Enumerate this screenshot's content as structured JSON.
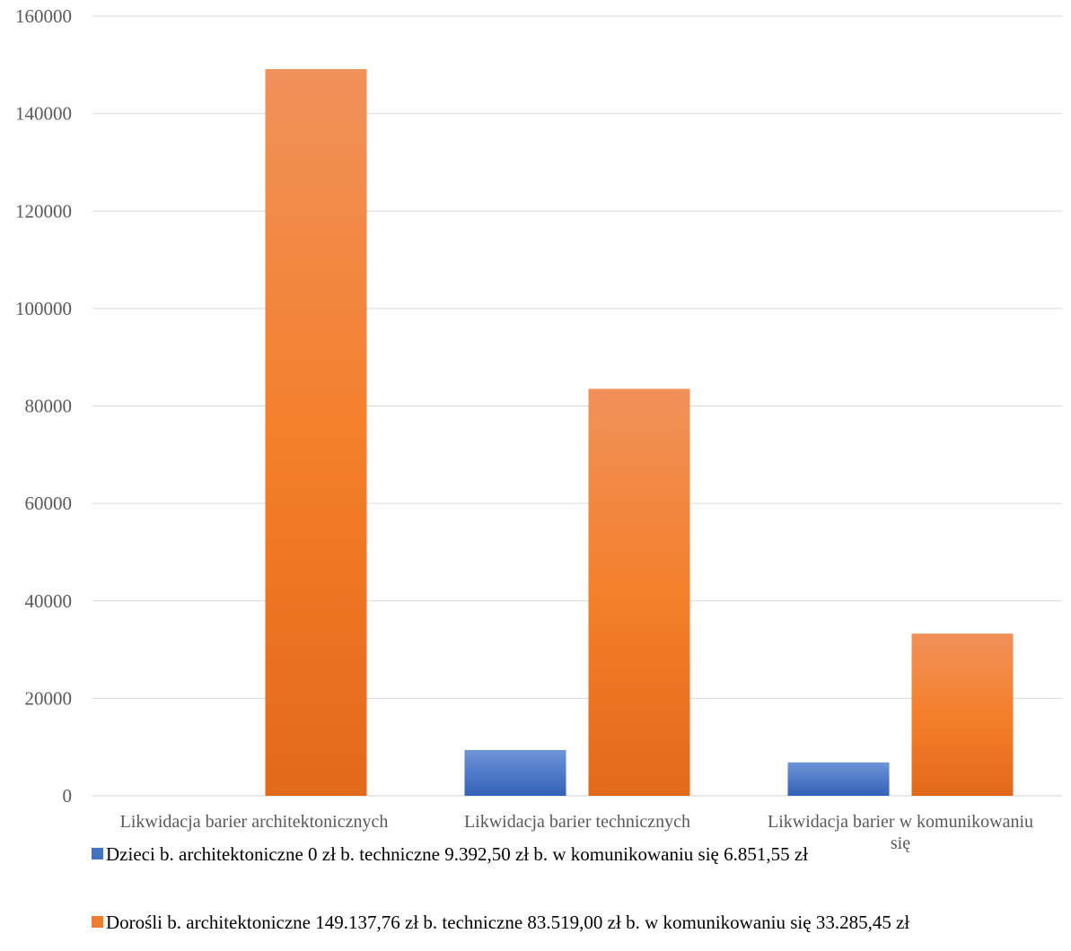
{
  "chart_data": {
    "type": "bar",
    "categories": [
      "Likwidacja barier architektonicznych",
      "Likwidacja barier technicznych",
      "Likwidacja barier w komunikowaniu się"
    ],
    "ylim": [
      0,
      160000
    ],
    "yticks": [
      0,
      20000,
      40000,
      60000,
      80000,
      100000,
      120000,
      140000,
      160000
    ],
    "grid": true,
    "legend_position": "bottom",
    "series": [
      {
        "name": "Dzieci b. architektoniczne 0 zł b. techniczne 9.392,50 zł b. w komunikowaniu się 6.851,55 zł",
        "values": [
          0,
          9392.5,
          6851.55
        ],
        "color": "#4472c4"
      },
      {
        "name": "Dorośli b. architektoniczne 149.137,76 zł b. techniczne 83.519,00 zł b. w komunikowaniu się 33.285,45 zł",
        "values": [
          149137.76,
          83519.0,
          33285.45
        ],
        "color": "#ed7d31"
      }
    ]
  }
}
